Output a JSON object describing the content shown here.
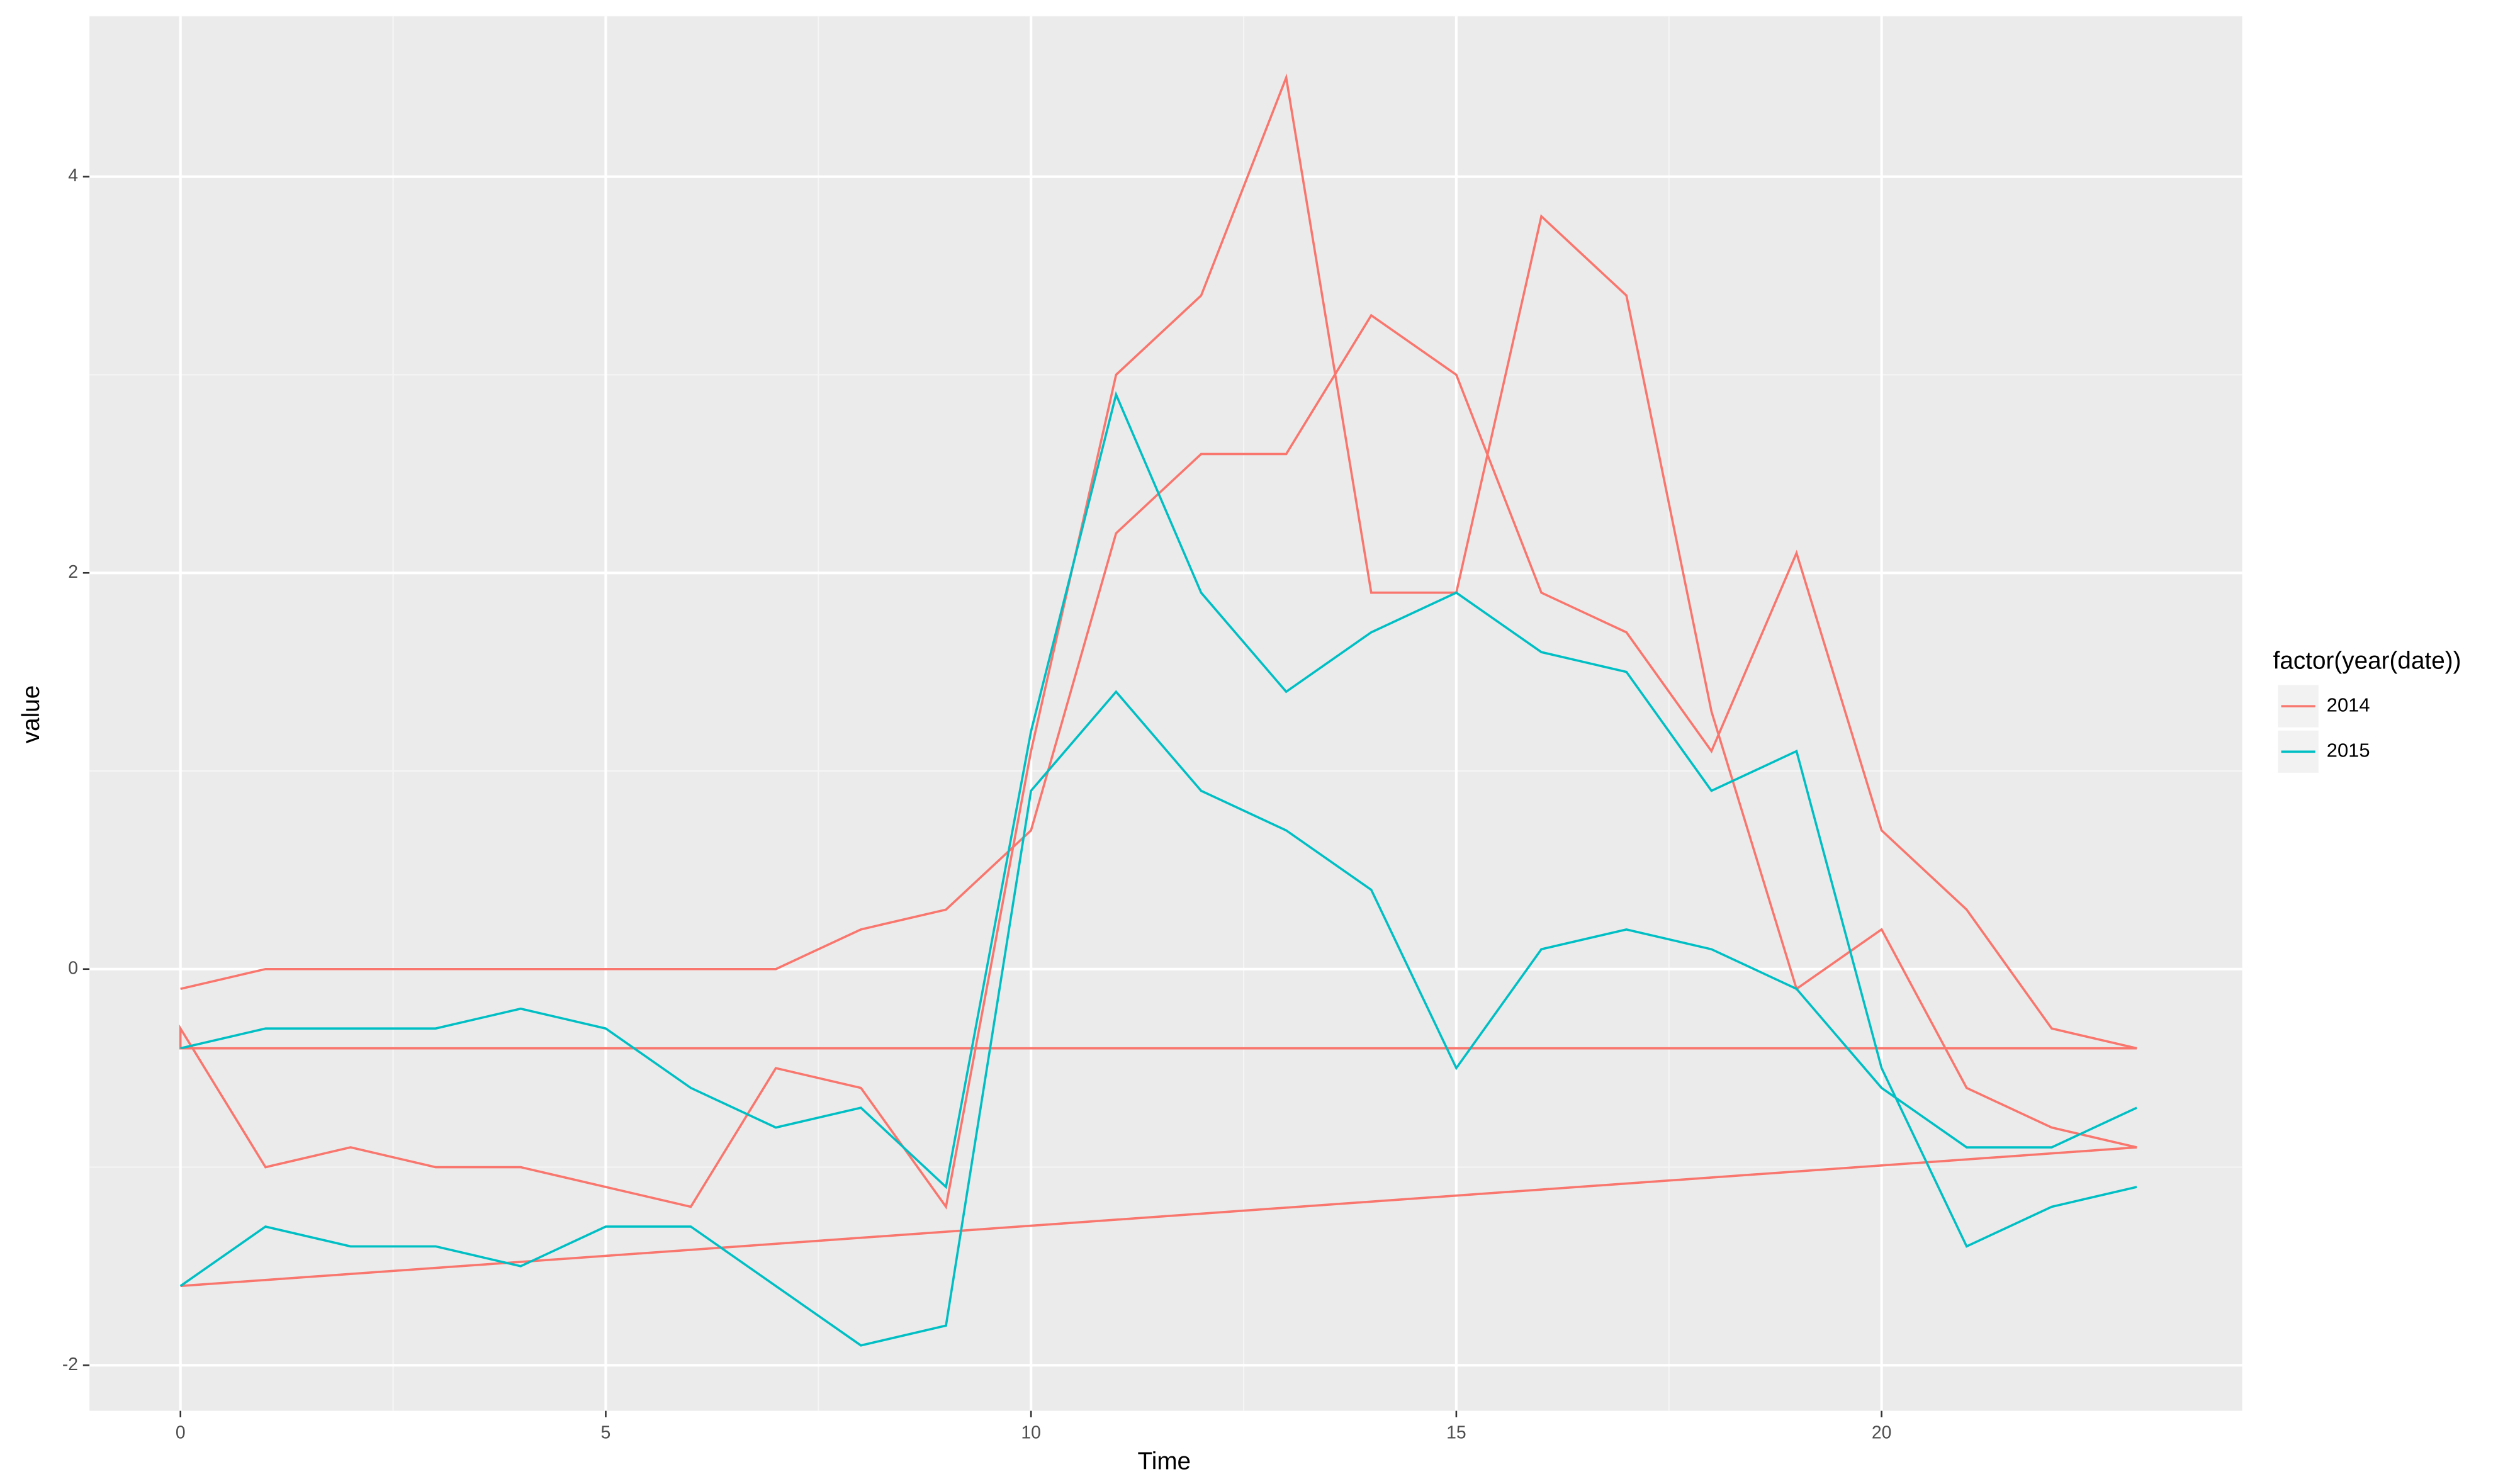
{
  "chart_data": {
    "type": "line",
    "x_label": "Time",
    "y_label": "value",
    "legend_title": "factor(year(date))",
    "xlim": [
      -1.07,
      24.24
    ],
    "ylim": [
      -2.23,
      4.81
    ],
    "xticks": [
      0,
      5,
      10,
      15,
      20
    ],
    "yticks": [
      -2,
      0,
      2,
      4
    ],
    "grid": true,
    "series": [
      {
        "name": "2014",
        "color": "#f8766d",
        "x": [
          0,
          1,
          2,
          3,
          4,
          5,
          6,
          7,
          8,
          9,
          10,
          11,
          12,
          13,
          14,
          15,
          16,
          17,
          18,
          19,
          20,
          21,
          22,
          23,
          0,
          0,
          1,
          2,
          3,
          4,
          5,
          6,
          7,
          8,
          9,
          10,
          11,
          12,
          13,
          14,
          15,
          16,
          17,
          18,
          19,
          20,
          21,
          22,
          23,
          0
        ],
        "values": [
          -0.1,
          0,
          0,
          0,
          0,
          0,
          0,
          0,
          0.2,
          0.3,
          0.7,
          2.2,
          2.6,
          2.6,
          3.3,
          3.0,
          1.9,
          1.7,
          1.1,
          2.1,
          0.7,
          0.3,
          -0.3,
          -0.4,
          -0.4,
          -0.3,
          -1.0,
          -0.9,
          -1.0,
          -1.0,
          -1.1,
          -1.2,
          -0.5,
          -0.6,
          -1.2,
          1.1,
          3.0,
          3.4,
          4.5,
          1.9,
          1.9,
          3.8,
          3.4,
          1.3,
          -0.1,
          0.2,
          -0.6,
          -0.8,
          -0.9,
          -1.6
        ]
      },
      {
        "name": "2015",
        "color": "#00bfc4",
        "x": [
          0,
          1,
          2,
          3,
          4,
          5,
          6,
          7,
          8,
          9,
          10,
          11,
          12,
          13,
          14,
          15,
          16,
          17,
          18,
          19,
          20,
          21,
          22,
          23,
          null,
          0,
          1,
          2,
          3,
          4,
          5,
          6,
          7,
          8,
          9,
          10,
          11,
          12,
          13,
          14,
          15,
          16,
          17,
          18,
          19,
          20,
          21,
          22,
          23
        ],
        "values": [
          -0.4,
          -0.3,
          -0.3,
          -0.3,
          -0.2,
          -0.3,
          -0.6,
          -0.8,
          -0.7,
          -1.1,
          1.2,
          2.9,
          1.9,
          1.4,
          1.7,
          1.9,
          1.6,
          1.5,
          0.9,
          1.1,
          -0.5,
          -1.4,
          -1.2,
          -1.1,
          null,
          -1.6,
          -1.3,
          -1.4,
          -1.4,
          -1.5,
          -1.3,
          -1.3,
          -1.6,
          -1.9,
          -1.8,
          0.9,
          1.4,
          0.9,
          0.7,
          0.4,
          -0.5,
          0.1,
          0.2,
          0.1,
          -0.1,
          -0.6,
          -0.9,
          -0.9,
          -0.7
        ]
      }
    ]
  }
}
